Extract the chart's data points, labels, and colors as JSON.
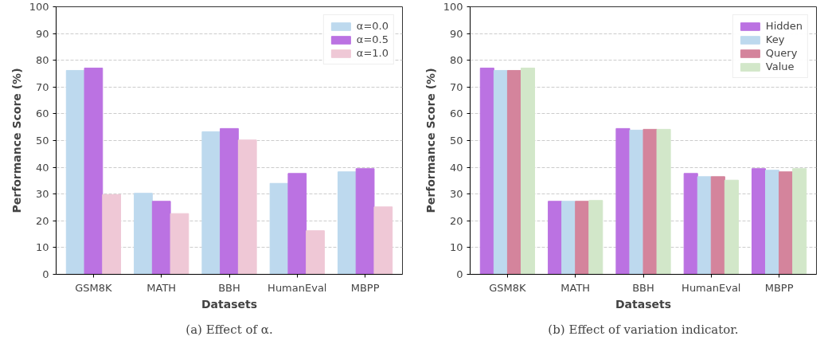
{
  "chart_data": [
    {
      "type": "bar",
      "xlabel": "Datasets",
      "ylabel": "Performance Score (%)",
      "categories": [
        "GSM8K",
        "MATH",
        "BBH",
        "HumanEval",
        "MBPP"
      ],
      "ylim": [
        0,
        100
      ],
      "yticks": [
        0,
        10,
        20,
        30,
        40,
        50,
        60,
        70,
        80,
        90,
        100
      ],
      "grid": "y",
      "legend": "top right",
      "annotations": [
        "(a) Effect of α."
      ],
      "series": [
        {
          "name": "α=0.0",
          "color": "#bdd9ee",
          "values": [
            76.2,
            30.3,
            53.3,
            34.0,
            38.3
          ]
        },
        {
          "name": "α=0.5",
          "color": "#bb72e2",
          "values": [
            77.1,
            27.3,
            54.5,
            37.7,
            39.5
          ]
        },
        {
          "name": "α=1.0",
          "color": "#efc8d6",
          "values": [
            29.8,
            22.7,
            50.2,
            16.3,
            25.2
          ]
        }
      ]
    },
    {
      "type": "bar",
      "xlabel": "Datasets",
      "ylabel": "Performance Score (%)",
      "categories": [
        "GSM8K",
        "MATH",
        "BBH",
        "HumanEval",
        "MBPP"
      ],
      "ylim": [
        0,
        100
      ],
      "yticks": [
        0,
        10,
        20,
        30,
        40,
        50,
        60,
        70,
        80,
        90,
        100
      ],
      "grid": "y",
      "legend": "top right",
      "annotations": [
        "(b) Effect of variation indicator."
      ],
      "series": [
        {
          "name": "Hidden",
          "color": "#bb72e2",
          "values": [
            77.1,
            27.3,
            54.5,
            37.7,
            39.5
          ]
        },
        {
          "name": "Key",
          "color": "#bdd9ee",
          "values": [
            76.2,
            27.3,
            53.9,
            36.5,
            38.9
          ]
        },
        {
          "name": "Query",
          "color": "#d4849c",
          "values": [
            76.2,
            27.3,
            54.2,
            36.5,
            38.3
          ]
        },
        {
          "name": "Value",
          "color": "#d2e7c9",
          "values": [
            77.1,
            27.6,
            54.2,
            35.2,
            39.5
          ]
        }
      ]
    }
  ]
}
